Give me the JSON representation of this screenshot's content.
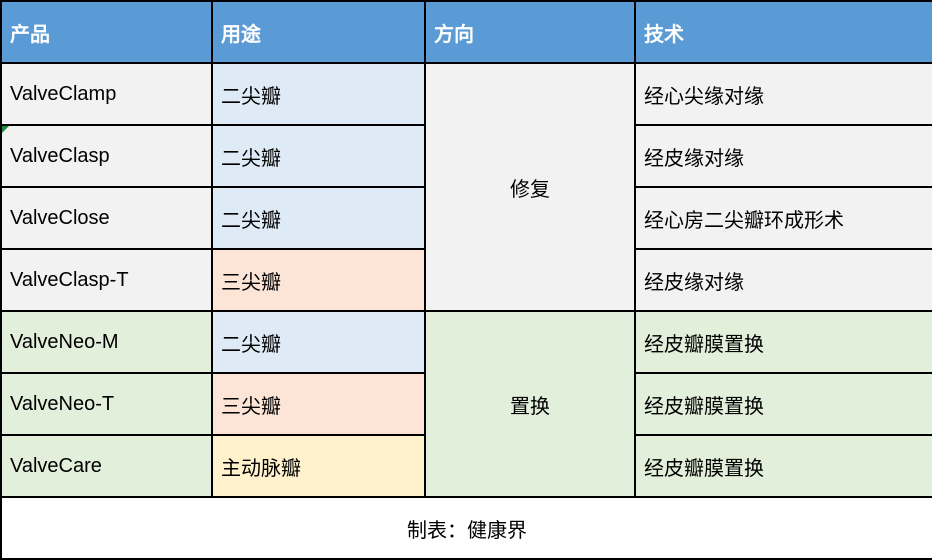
{
  "chart_data": {
    "type": "table",
    "title": "",
    "columns": [
      "产品",
      "用途",
      "方向",
      "技术"
    ],
    "rows": [
      [
        "ValveClamp",
        "二尖瓣",
        "修复",
        "经心尖缘对缘"
      ],
      [
        "ValveClasp",
        "二尖瓣",
        "修复",
        "经皮缘对缘"
      ],
      [
        "ValveClose",
        "二尖瓣",
        "修复",
        "经心房二尖瓣环成形术"
      ],
      [
        "ValveClasp-T",
        "三尖瓣",
        "修复",
        "经皮缘对缘"
      ],
      [
        "ValveNeo-M",
        "二尖瓣",
        "置换",
        "经皮瓣膜置换"
      ],
      [
        "ValveNeo-T",
        "三尖瓣",
        "置换",
        "经皮瓣膜置换"
      ],
      [
        "ValveCare",
        "主动脉瓣",
        "置换",
        "经皮瓣膜置换"
      ]
    ],
    "merged_cells": [
      {
        "column": "方向",
        "value": "修复",
        "rows": "1-4"
      },
      {
        "column": "方向",
        "value": "置换",
        "rows": "5-7"
      }
    ],
    "footer": "制表：健康界"
  },
  "table": {
    "headers": [
      "产品",
      "用途",
      "方向",
      "技术"
    ],
    "rows": [
      {
        "product": "ValveClamp",
        "usage": "二尖瓣",
        "technique": "经心尖缘对缘"
      },
      {
        "product": "ValveClasp",
        "usage": "二尖瓣",
        "technique": "经皮缘对缘"
      },
      {
        "product": "ValveClose",
        "usage": "二尖瓣",
        "technique": "经心房二尖瓣环成形术"
      },
      {
        "product": "ValveClasp-T",
        "usage": "三尖瓣",
        "technique": "经皮缘对缘"
      },
      {
        "product": "ValveNeo-M",
        "usage": "二尖瓣",
        "technique": "经皮瓣膜置换"
      },
      {
        "product": "ValveNeo-T",
        "usage": "三尖瓣",
        "technique": "经皮瓣膜置换"
      },
      {
        "product": "ValveCare",
        "usage": "主动脉瓣",
        "technique": "经皮瓣膜置换"
      }
    ],
    "direction_groups": [
      {
        "label": "修复",
        "row_count": 4
      },
      {
        "label": "置换",
        "row_count": 3
      }
    ],
    "footer": "制表：健康界"
  },
  "colors": {
    "header_bg": "#5B9BD5",
    "header_text": "#FFFFFF",
    "row_gray": "#F2F2F2",
    "row_green": "#E2EFDA",
    "cell_blue": "#DEEBF7",
    "cell_pink": "#FCE4D6",
    "cell_yellow": "#FFF2CC",
    "border": "#000000",
    "comment_marker_green": "#1E8A3C"
  }
}
